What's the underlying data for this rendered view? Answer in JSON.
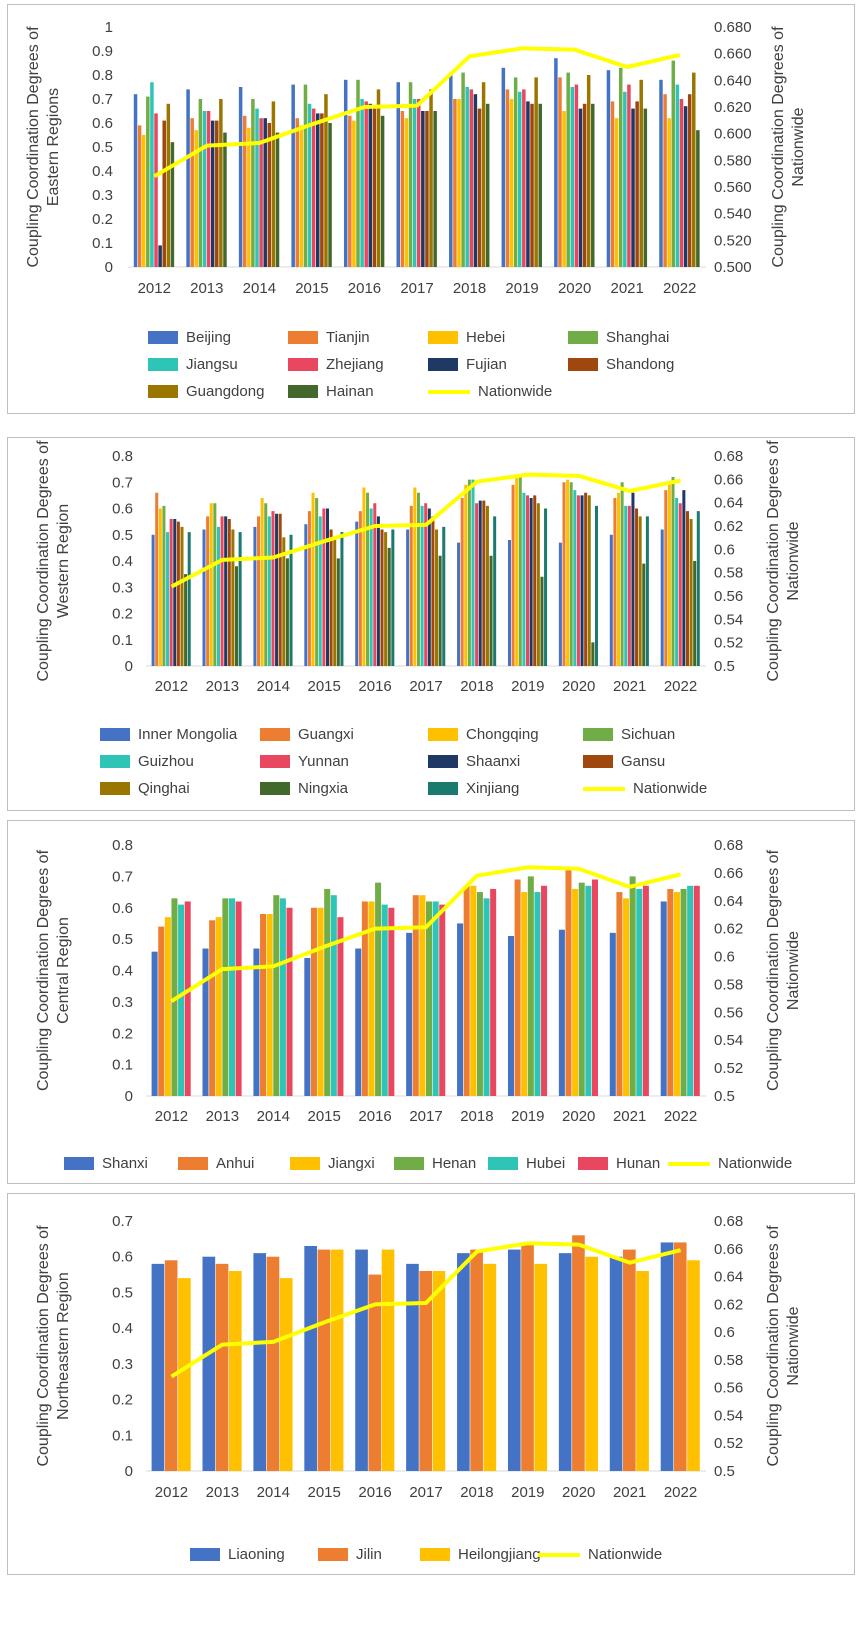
{
  "chart_data": [
    {
      "type": "bar",
      "title": "",
      "ylabel_lines": [
        "Coupling Coordination Degrees of",
        "Eastern Regions"
      ],
      "ylabel_right_lines": [
        "Coupling Coordination Degrees of",
        "Nationwide"
      ],
      "left_ticks": [
        "0",
        "0.1",
        "0.2",
        "0.3",
        "0.4",
        "0.5",
        "0.6",
        "0.7",
        "0.8",
        "0.9",
        "1"
      ],
      "right_ticks": [
        "0.500",
        "0.520",
        "0.540",
        "0.560",
        "0.580",
        "0.600",
        "0.620",
        "0.640",
        "0.660",
        "0.680"
      ],
      "ylim": [
        0,
        1
      ],
      "y2lim": [
        0.5,
        0.68
      ],
      "categories": [
        "2012",
        "2013",
        "2014",
        "2015",
        "2016",
        "2017",
        "2018",
        "2019",
        "2020",
        "2021",
        "2022"
      ],
      "series": [
        {
          "name": "Beijing",
          "color": "#4472C4",
          "values": [
            0.72,
            0.74,
            0.75,
            0.76,
            0.78,
            0.77,
            0.8,
            0.83,
            0.87,
            0.82,
            0.78
          ]
        },
        {
          "name": "Tianjin",
          "color": "#ED7D31",
          "values": [
            0.59,
            0.62,
            0.63,
            0.62,
            0.63,
            0.65,
            0.7,
            0.74,
            0.79,
            0.69,
            0.72
          ]
        },
        {
          "name": "Hebei",
          "color": "#FFC000",
          "values": [
            0.55,
            0.57,
            0.58,
            0.59,
            0.61,
            0.62,
            0.7,
            0.7,
            0.65,
            0.62,
            0.62
          ]
        },
        {
          "name": "Shanghai",
          "color": "#70AD47",
          "values": [
            0.71,
            0.7,
            0.7,
            0.76,
            0.78,
            0.77,
            0.81,
            0.79,
            0.81,
            0.83,
            0.86
          ]
        },
        {
          "name": "Jiangsu",
          "color": "#2EC4B6",
          "values": [
            0.77,
            0.65,
            0.66,
            0.68,
            0.7,
            0.7,
            0.75,
            0.73,
            0.75,
            0.73,
            0.76
          ]
        },
        {
          "name": "Zhejiang",
          "color": "#E8475F",
          "values": [
            0.64,
            0.65,
            0.62,
            0.66,
            0.69,
            0.7,
            0.74,
            0.74,
            0.76,
            0.76,
            0.7
          ]
        },
        {
          "name": "Fujian",
          "color": "#203864",
          "values": [
            0.09,
            0.61,
            0.62,
            0.64,
            0.68,
            0.65,
            0.72,
            0.69,
            0.66,
            0.66,
            0.67
          ]
        },
        {
          "name": "Shandong",
          "color": "#A0470E",
          "values": [
            0.61,
            0.61,
            0.6,
            0.64,
            0.66,
            0.65,
            0.66,
            0.68,
            0.68,
            0.69,
            0.72
          ]
        },
        {
          "name": "Guangdong",
          "color": "#9A7500",
          "values": [
            0.68,
            0.7,
            0.69,
            0.72,
            0.74,
            0.74,
            0.77,
            0.79,
            0.8,
            0.78,
            0.81
          ]
        },
        {
          "name": "Hainan",
          "color": "#43682B",
          "values": [
            0.52,
            0.56,
            0.56,
            0.6,
            0.63,
            0.65,
            0.68,
            0.68,
            0.68,
            0.66,
            0.57
          ]
        }
      ],
      "line": {
        "name": "Nationwide",
        "color": "#FFFF00",
        "values": [
          0.568,
          0.591,
          0.593,
          0.607,
          0.62,
          0.621,
          0.658,
          0.664,
          0.663,
          0.65,
          0.659
        ]
      }
    },
    {
      "type": "bar",
      "title": "",
      "ylabel_lines": [
        "Coupling Coordination Degrees of",
        "Western Region"
      ],
      "ylabel_right_lines": [
        "Coupling Coordination Degrees of",
        "Nationwide"
      ],
      "left_ticks": [
        "0",
        "0.1",
        "0.2",
        "0.3",
        "0.4",
        "0.5",
        "0.6",
        "0.7",
        "0.8"
      ],
      "right_ticks": [
        "0.5",
        "0.52",
        "0.54",
        "0.56",
        "0.58",
        "0.6",
        "0.62",
        "0.64",
        "0.66",
        "0.68"
      ],
      "ylim": [
        0,
        0.8
      ],
      "y2lim": [
        0.5,
        0.68
      ],
      "categories": [
        "2012",
        "2013",
        "2014",
        "2015",
        "2016",
        "2017",
        "2018",
        "2019",
        "2020",
        "2021",
        "2022"
      ],
      "series": [
        {
          "name": "Inner Mongolia",
          "color": "#4472C4",
          "values": [
            0.5,
            0.52,
            0.53,
            0.54,
            0.55,
            0.52,
            0.47,
            0.48,
            0.47,
            0.5,
            0.52
          ]
        },
        {
          "name": "Guangxi",
          "color": "#ED7D31",
          "values": [
            0.66,
            0.57,
            0.57,
            0.59,
            0.59,
            0.61,
            0.64,
            0.69,
            0.7,
            0.64,
            0.67
          ]
        },
        {
          "name": "Chongqing",
          "color": "#FFC000",
          "values": [
            0.6,
            0.62,
            0.64,
            0.66,
            0.68,
            0.68,
            0.69,
            0.72,
            0.71,
            0.66,
            0.7
          ]
        },
        {
          "name": "Sichuan",
          "color": "#70AD47",
          "values": [
            0.61,
            0.62,
            0.62,
            0.64,
            0.66,
            0.66,
            0.71,
            0.72,
            0.7,
            0.7,
            0.72
          ]
        },
        {
          "name": "Guizhou",
          "color": "#2EC4B6",
          "values": [
            0.51,
            0.53,
            0.57,
            0.57,
            0.6,
            0.61,
            0.71,
            0.66,
            0.67,
            0.61,
            0.64
          ]
        },
        {
          "name": "Yunnan",
          "color": "#E8475F",
          "values": [
            0.56,
            0.57,
            0.59,
            0.6,
            0.62,
            0.62,
            0.62,
            0.65,
            0.65,
            0.61,
            0.62
          ]
        },
        {
          "name": "Shaanxi",
          "color": "#203864",
          "values": [
            0.56,
            0.57,
            0.58,
            0.6,
            0.57,
            0.6,
            0.63,
            0.64,
            0.65,
            0.66,
            0.67
          ]
        },
        {
          "name": "Gansu",
          "color": "#A0470E",
          "values": [
            0.55,
            0.56,
            0.58,
            0.52,
            0.52,
            0.57,
            0.63,
            0.65,
            0.66,
            0.6,
            0.59
          ]
        },
        {
          "name": "Qinghai",
          "color": "#9A7500",
          "values": [
            0.53,
            0.52,
            0.49,
            0.49,
            0.51,
            0.52,
            0.61,
            0.62,
            0.65,
            0.57,
            0.56
          ]
        },
        {
          "name": "Ningxia",
          "color": "#43682B",
          "values": [
            0.35,
            0.38,
            0.41,
            0.41,
            0.45,
            0.42,
            0.42,
            0.34,
            0.09,
            0.39,
            0.4
          ]
        },
        {
          "name": "Xinjiang",
          "color": "#1B7A6E",
          "values": [
            0.51,
            0.51,
            0.5,
            0.51,
            0.52,
            0.53,
            0.57,
            0.6,
            0.61,
            0.57,
            0.59
          ]
        }
      ],
      "line": {
        "name": "Nationwide",
        "color": "#FFFF00",
        "values": [
          0.568,
          0.591,
          0.593,
          0.607,
          0.62,
          0.621,
          0.658,
          0.664,
          0.663,
          0.65,
          0.659
        ]
      }
    },
    {
      "type": "bar",
      "title": "",
      "ylabel_lines": [
        "Coupling Coordination Degrees of",
        "Central Region"
      ],
      "ylabel_right_lines": [
        "Coupling Coordination Degrees of",
        "Nationwide"
      ],
      "left_ticks": [
        "0",
        "0.1",
        "0.2",
        "0.3",
        "0.4",
        "0.5",
        "0.6",
        "0.7",
        "0.8"
      ],
      "right_ticks": [
        "0.5",
        "0.52",
        "0.54",
        "0.56",
        "0.58",
        "0.6",
        "0.62",
        "0.64",
        "0.66",
        "0.68"
      ],
      "ylim": [
        0,
        0.8
      ],
      "y2lim": [
        0.5,
        0.68
      ],
      "categories": [
        "2012",
        "2013",
        "2014",
        "2015",
        "2016",
        "2017",
        "2018",
        "2019",
        "2020",
        "2021",
        "2022"
      ],
      "series": [
        {
          "name": "Shanxi",
          "color": "#4472C4",
          "values": [
            0.46,
            0.47,
            0.47,
            0.44,
            0.47,
            0.52,
            0.55,
            0.51,
            0.53,
            0.52,
            0.62
          ]
        },
        {
          "name": "Anhui",
          "color": "#ED7D31",
          "values": [
            0.54,
            0.56,
            0.58,
            0.6,
            0.62,
            0.64,
            0.67,
            0.69,
            0.72,
            0.65,
            0.66
          ]
        },
        {
          "name": "Jiangxi",
          "color": "#FFC000",
          "values": [
            0.57,
            0.57,
            0.58,
            0.6,
            0.62,
            0.64,
            0.67,
            0.65,
            0.66,
            0.63,
            0.65
          ]
        },
        {
          "name": "Henan",
          "color": "#70AD47",
          "values": [
            0.63,
            0.63,
            0.64,
            0.66,
            0.68,
            0.62,
            0.65,
            0.7,
            0.68,
            0.7,
            0.66
          ]
        },
        {
          "name": "Hubei",
          "color": "#2EC4B6",
          "values": [
            0.61,
            0.63,
            0.63,
            0.64,
            0.61,
            0.62,
            0.63,
            0.65,
            0.67,
            0.66,
            0.67
          ]
        },
        {
          "name": "Hunan",
          "color": "#E8475F",
          "values": [
            0.62,
            0.62,
            0.6,
            0.57,
            0.6,
            0.61,
            0.66,
            0.67,
            0.69,
            0.67,
            0.67
          ]
        }
      ],
      "line": {
        "name": "Nationwide",
        "color": "#FFFF00",
        "values": [
          0.568,
          0.591,
          0.593,
          0.607,
          0.62,
          0.621,
          0.658,
          0.664,
          0.663,
          0.65,
          0.659
        ]
      }
    },
    {
      "type": "bar",
      "title": "",
      "ylabel_lines": [
        "Coupling Coordination Degrees of",
        "Northeastern Region"
      ],
      "ylabel_right_lines": [
        "Coupling Coordination Degrees of",
        "Nationwide"
      ],
      "left_ticks": [
        "0",
        "0.1",
        "0.2",
        "0.3",
        "0.4",
        "0.5",
        "0.6",
        "0.7"
      ],
      "right_ticks": [
        "0.5",
        "0.52",
        "0.54",
        "0.56",
        "0.58",
        "0.6",
        "0.62",
        "0.64",
        "0.66",
        "0.68"
      ],
      "ylim": [
        0,
        0.7
      ],
      "y2lim": [
        0.5,
        0.68
      ],
      "categories": [
        "2012",
        "2013",
        "2014",
        "2015",
        "2016",
        "2017",
        "2018",
        "2019",
        "2020",
        "2021",
        "2022"
      ],
      "series": [
        {
          "name": "Liaoning",
          "color": "#4472C4",
          "values": [
            0.58,
            0.6,
            0.61,
            0.63,
            0.62,
            0.58,
            0.61,
            0.62,
            0.61,
            0.6,
            0.64
          ]
        },
        {
          "name": "Jilin",
          "color": "#ED7D31",
          "values": [
            0.59,
            0.58,
            0.6,
            0.62,
            0.55,
            0.56,
            0.62,
            0.64,
            0.66,
            0.62,
            0.64
          ]
        },
        {
          "name": "Heilongjiang",
          "color": "#FFC000",
          "values": [
            0.54,
            0.56,
            0.54,
            0.62,
            0.62,
            0.56,
            0.58,
            0.58,
            0.6,
            0.56,
            0.59
          ]
        }
      ],
      "line": {
        "name": "Nationwide",
        "color": "#FFFF00",
        "values": [
          0.568,
          0.591,
          0.593,
          0.607,
          0.62,
          0.621,
          0.658,
          0.664,
          0.663,
          0.65,
          0.659
        ]
      }
    }
  ]
}
